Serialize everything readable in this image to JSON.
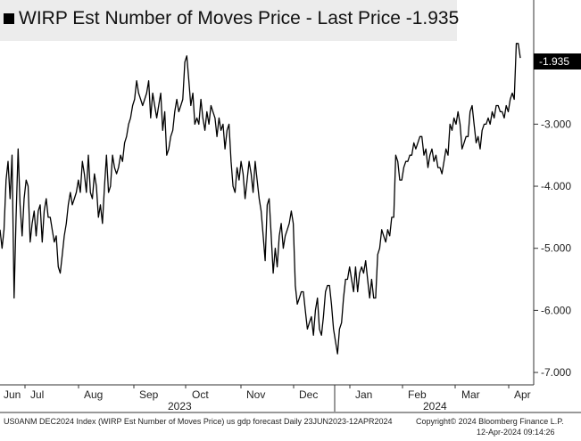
{
  "legend": {
    "label": "WIRP Est Number of Moves Price - Last Price -1.935"
  },
  "last_price_tag": "-1.935",
  "footer": {
    "left": "US0ANM DEC2024 Index (WIRP Est Number of Moves Price) us gdp forecast  Daily 23JUN2023-12APR2024",
    "copyright": "Copyright© 2024 Bloomberg Finance L.P.",
    "timestamp": "12-Apr-2024 09:14:26"
  },
  "colors": {
    "line": "#000000",
    "background": "#ffffff",
    "legend_bg": "#ececec",
    "tag_bg": "#000000"
  },
  "chart_data": {
    "type": "line",
    "series": [
      {
        "values": [
          -4.7,
          -5.0,
          -4.7,
          -3.9,
          -3.6,
          -4.2,
          -3.5,
          -5.8,
          -4.5,
          -3.4,
          -4.3,
          -4.8,
          -4.2,
          -3.9,
          -4.0,
          -4.9,
          -4.6,
          -4.4,
          -4.8,
          -4.4,
          -4.3,
          -4.9,
          -4.4,
          -4.2,
          -4.5,
          -4.5,
          -4.7,
          -4.9,
          -4.8,
          -5.3,
          -5.4,
          -5.1,
          -4.8,
          -4.6,
          -4.3,
          -4.1,
          -4.3,
          -4.2,
          -4.1,
          -3.9,
          -4.1,
          -3.6,
          -3.8,
          -4.1,
          -3.5,
          -4.1,
          -4.2,
          -3.8,
          -4.0,
          -4.5,
          -4.3,
          -4.6,
          -4.0,
          -3.5,
          -4.1,
          -4.0,
          -3.5,
          -3.7,
          -3.8,
          -3.7,
          -3.5,
          -3.6,
          -3.3,
          -3.2,
          -3.0,
          -2.9,
          -2.7,
          -2.6,
          -2.3,
          -2.5,
          -2.6,
          -2.7,
          -2.6,
          -2.5,
          -2.3,
          -2.9,
          -2.5,
          -2.7,
          -2.9,
          -2.7,
          -2.5,
          -3.1,
          -2.8,
          -3.5,
          -3.4,
          -3.2,
          -3.1,
          -2.8,
          -2.6,
          -2.8,
          -2.7,
          -2.6,
          -2.0,
          -1.9,
          -2.3,
          -2.7,
          -2.5,
          -3.0,
          -2.9,
          -3.0,
          -2.6,
          -2.9,
          -3.1,
          -2.8,
          -3.0,
          -2.7,
          -2.8,
          -2.9,
          -3.2,
          -2.9,
          -3.1,
          -3.0,
          -3.4,
          -3.1,
          -3.0,
          -3.6,
          -4.0,
          -4.1,
          -3.7,
          -3.9,
          -3.6,
          -3.8,
          -4.2,
          -3.9,
          -3.6,
          -3.8,
          -4.1,
          -3.6,
          -3.9,
          -4.2,
          -4.4,
          -4.8,
          -5.2,
          -4.3,
          -4.2,
          -4.8,
          -5.4,
          -5.0,
          -5.3,
          -4.8,
          -4.6,
          -5.0,
          -4.8,
          -4.7,
          -4.6,
          -4.4,
          -4.6,
          -5.6,
          -5.9,
          -5.8,
          -5.7,
          -5.7,
          -6.0,
          -6.3,
          -6.2,
          -6.1,
          -6.4,
          -6.0,
          -5.8,
          -6.3,
          -6.4,
          -6.1,
          -5.7,
          -5.6,
          -5.6,
          -5.9,
          -6.3,
          -6.5,
          -6.7,
          -6.3,
          -6.2,
          -5.8,
          -5.5,
          -5.5,
          -5.3,
          -5.5,
          -5.7,
          -5.3,
          -5.7,
          -5.4,
          -5.3,
          -5.4,
          -5.2,
          -5.5,
          -5.8,
          -5.5,
          -5.8,
          -5.8,
          -5.1,
          -5.0,
          -4.7,
          -4.8,
          -4.9,
          -4.7,
          -4.8,
          -4.5,
          -4.5,
          -3.5,
          -3.6,
          -3.9,
          -3.9,
          -3.7,
          -3.6,
          -3.6,
          -3.5,
          -3.5,
          -3.3,
          -3.4,
          -3.3,
          -3.2,
          -3.2,
          -3.5,
          -3.4,
          -3.7,
          -3.5,
          -3.4,
          -3.6,
          -3.5,
          -3.7,
          -3.7,
          -3.8,
          -3.6,
          -3.4,
          -3.5,
          -3.0,
          -3.1,
          -2.9,
          -3.0,
          -2.8,
          -3.0,
          -3.4,
          -3.3,
          -3.2,
          -3.2,
          -2.8,
          -2.7,
          -3.0,
          -3.3,
          -3.2,
          -3.4,
          -3.1,
          -3.0,
          -3.0,
          -2.9,
          -3.0,
          -2.8,
          -2.9,
          -2.7,
          -2.7,
          -2.8,
          -2.8,
          -2.9,
          -2.7,
          -2.8,
          -2.6,
          -2.5,
          -2.6,
          -1.7,
          -1.7,
          -1.935
        ]
      }
    ],
    "ylim": [
      -7.2,
      -1.0
    ],
    "yticks": [
      -7.0,
      -6.0,
      -5.0,
      -4.0,
      -3.0
    ],
    "ytick_labels": [
      "-7.000",
      "-6.000",
      "-5.000",
      "-4.000",
      "-3.000"
    ],
    "xtick_labels": [
      "Jun",
      "Jul",
      "Aug",
      "Sep",
      "Oct",
      "Nov",
      "Dec",
      "Jan",
      "Feb",
      "Mar",
      "Apr"
    ],
    "year_labels": [
      "2023",
      "2024"
    ],
    "grid": "none",
    "y_axis_position": "right",
    "legend_position": "top-left"
  }
}
